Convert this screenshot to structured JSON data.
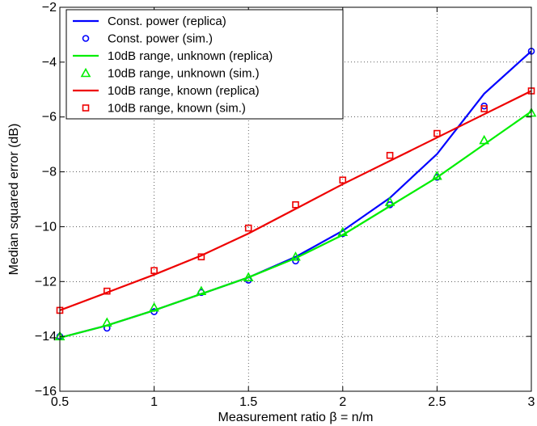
{
  "chart_data": {
    "type": "line",
    "title": "",
    "xlabel": "Measurement ratio β = n/m",
    "ylabel": "Median squared error (dB)",
    "xlim": [
      0.5,
      3
    ],
    "ylim": [
      -16,
      -2
    ],
    "xticks": [
      0.5,
      1,
      1.5,
      2,
      2.5,
      3
    ],
    "xtick_labels": [
      "0.5",
      "1",
      "1.5",
      "2",
      "2.5",
      "3"
    ],
    "yticks": [
      -16,
      -14,
      -12,
      -10,
      -8,
      -6,
      -4,
      -2
    ],
    "ytick_labels": [
      "−16",
      "−14",
      "−12",
      "−10",
      "−8",
      "−6",
      "−4",
      "−2"
    ],
    "grid": true,
    "legend_position": "top-left",
    "series": [
      {
        "name": "Const. power (replica)",
        "style": "line",
        "color": "#0000ff",
        "x": [
          0.5,
          0.75,
          1.0,
          1.25,
          1.5,
          1.75,
          2.0,
          2.25,
          2.5,
          2.75,
          3.0
        ],
        "y": [
          -14.05,
          -13.6,
          -13.05,
          -12.45,
          -11.85,
          -11.1,
          -10.15,
          -8.95,
          -7.35,
          -5.15,
          -3.6
        ]
      },
      {
        "name": "Const. power (sim.)",
        "style": "marker-circle",
        "color": "#0000ff",
        "x": [
          0.5,
          0.75,
          1.0,
          1.25,
          1.5,
          1.75,
          2.0,
          2.25,
          2.5,
          2.75,
          3.0
        ],
        "y": [
          -14.0,
          -13.7,
          -13.1,
          -12.4,
          -11.95,
          -11.25,
          -10.25,
          -9.2,
          -8.2,
          -5.6,
          -3.6
        ]
      },
      {
        "name": "10dB range, unknown (replica)",
        "style": "line",
        "color": "#00ee00",
        "x": [
          0.5,
          0.75,
          1.0,
          1.25,
          1.5,
          1.75,
          2.0,
          2.25,
          2.5,
          2.75,
          3.0
        ],
        "y": [
          -14.05,
          -13.6,
          -13.05,
          -12.45,
          -11.85,
          -11.15,
          -10.3,
          -9.25,
          -8.2,
          -7.0,
          -5.8
        ]
      },
      {
        "name": "10dB range, unknown (sim.)",
        "style": "marker-triangle",
        "color": "#00ee00",
        "x": [
          0.5,
          0.75,
          1.0,
          1.25,
          1.5,
          1.75,
          2.0,
          2.25,
          2.5,
          2.75,
          3.0
        ],
        "y": [
          -14.0,
          -13.5,
          -12.95,
          -12.35,
          -11.85,
          -11.1,
          -10.2,
          -9.1,
          -8.15,
          -6.85,
          -5.85
        ]
      },
      {
        "name": "10dB range, known (replica)",
        "style": "line",
        "color": "#ee0000",
        "x": [
          0.5,
          0.75,
          1.0,
          1.25,
          1.5,
          1.75,
          2.0,
          2.25,
          2.5,
          2.75,
          3.0
        ],
        "y": [
          -13.05,
          -12.4,
          -11.75,
          -11.05,
          -10.25,
          -9.35,
          -8.45,
          -7.6,
          -6.75,
          -5.9,
          -5.05
        ]
      },
      {
        "name": "10dB range, known (sim.)",
        "style": "marker-square",
        "color": "#ee0000",
        "x": [
          0.5,
          0.75,
          1.0,
          1.25,
          1.5,
          1.75,
          2.0,
          2.25,
          2.5,
          2.75,
          3.0
        ],
        "y": [
          -13.05,
          -12.35,
          -11.6,
          -11.1,
          -10.05,
          -9.2,
          -8.3,
          -7.4,
          -6.6,
          -5.7,
          -5.05
        ]
      }
    ]
  }
}
